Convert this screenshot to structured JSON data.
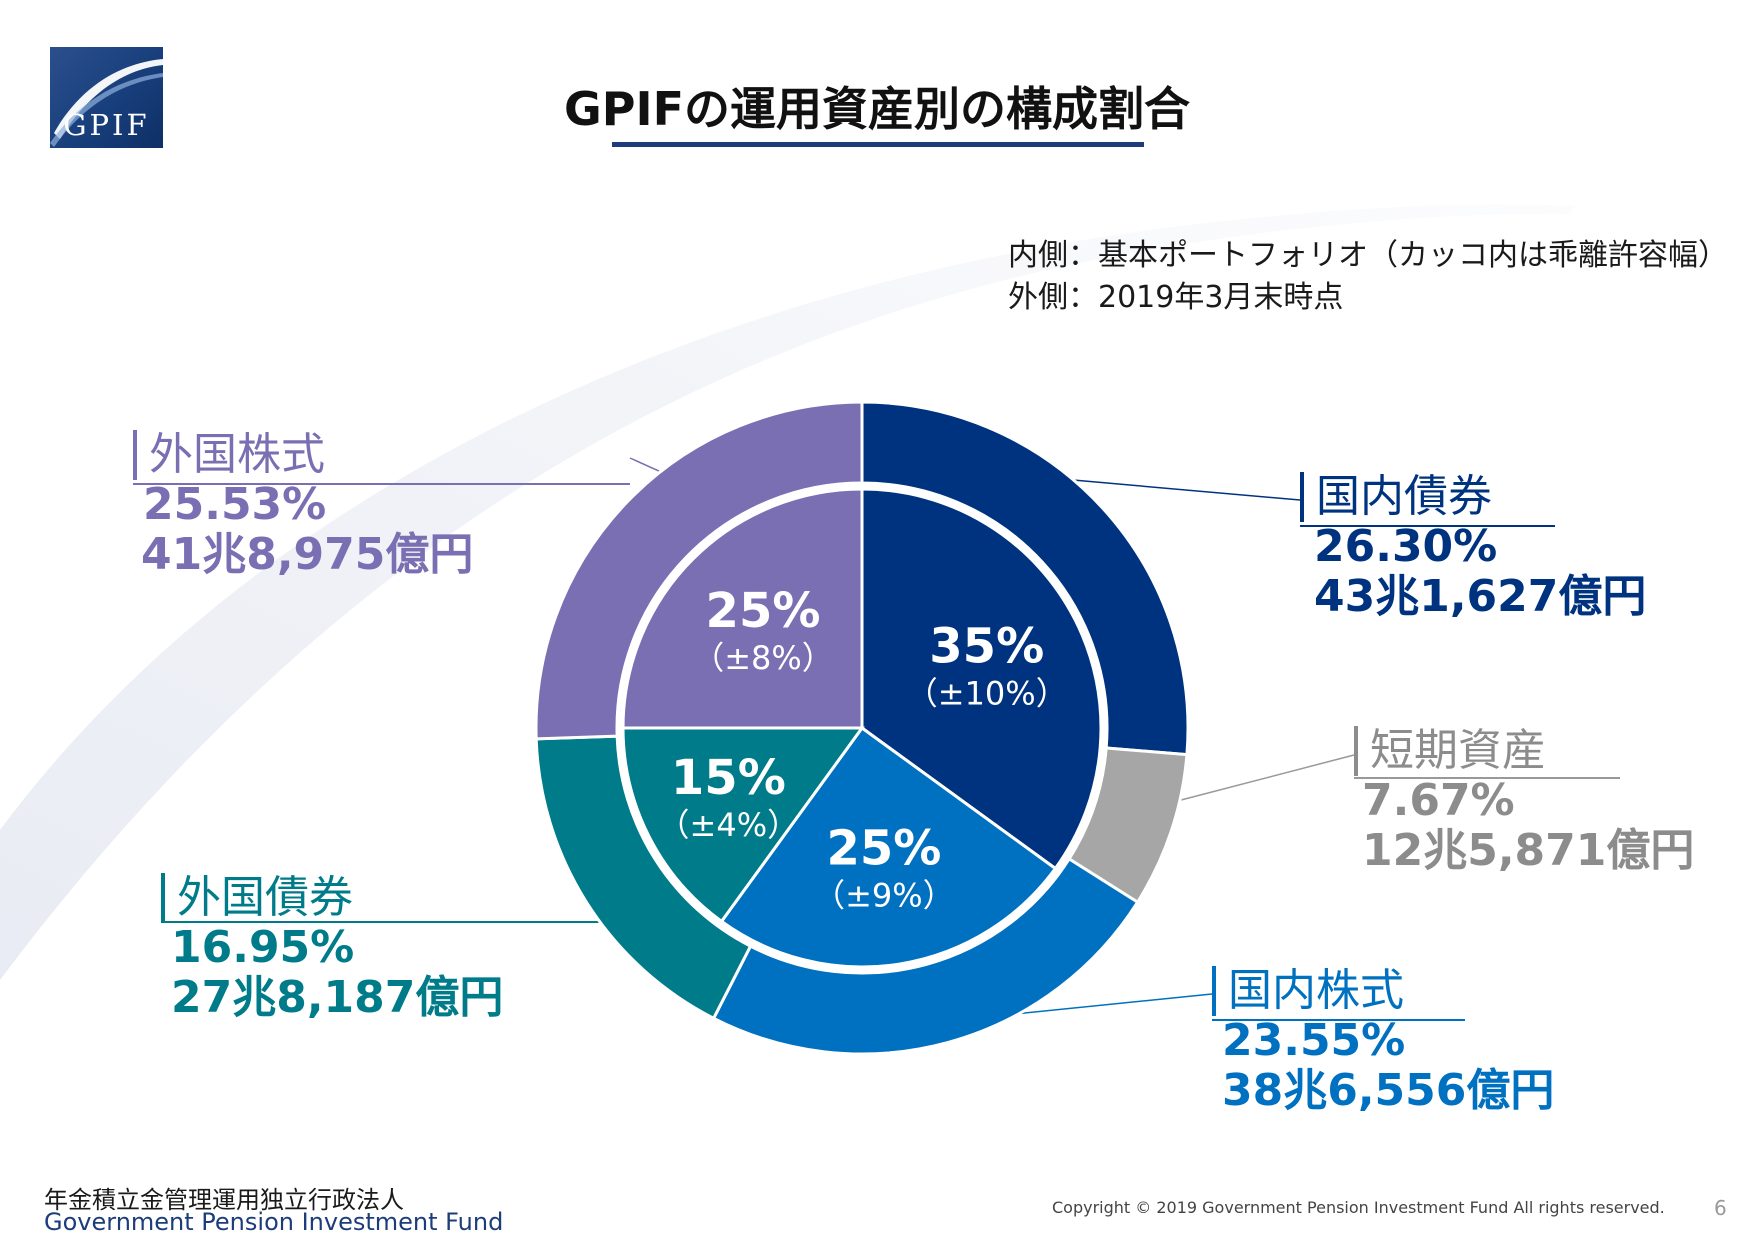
{
  "logo": {
    "text": "GPIF"
  },
  "title": "GPIFの運用資産別の構成割合",
  "notes": {
    "inner": "内側：基本ポートフォリオ（カッコ内は乖離許容幅）",
    "outer": "外側：2019年3月末時点"
  },
  "colors": {
    "domestic_bonds": "#00337f",
    "short_term": "#a6a6a6",
    "domestic_stocks": "#0070c0",
    "foreign_bonds": "#007b8a",
    "foreign_stocks": "#7a6fb3"
  },
  "labels": {
    "domestic_bonds": {
      "name": "国内債券",
      "pct": "26.30%",
      "amount": "43兆1,627億円"
    },
    "short_term": {
      "name": "短期資産",
      "pct": "7.67%",
      "amount": "12兆5,871億円"
    },
    "domestic_stocks": {
      "name": "国内株式",
      "pct": "23.55%",
      "amount": "38兆6,556億円"
    },
    "foreign_bonds": {
      "name": "外国債券",
      "pct": "16.95%",
      "amount": "27兆8,187億円"
    },
    "foreign_stocks": {
      "name": "外国株式",
      "pct": "25.53%",
      "amount": "41兆8,975億円"
    }
  },
  "chart_data": [
    {
      "type": "pie",
      "ring": "outer",
      "categories": [
        "国内債券",
        "短期資産",
        "国内株式",
        "外国債券",
        "外国株式"
      ],
      "values": [
        26.3,
        7.67,
        23.55,
        16.95,
        25.53
      ],
      "amounts": [
        "43兆1,627億円",
        "12兆5,871億円",
        "38兆6,556億円",
        "27兆8,187億円",
        "41兆8,975億円"
      ]
    },
    {
      "type": "pie",
      "ring": "inner",
      "categories": [
        "国内債券",
        "国内株式",
        "外国債券",
        "外国株式"
      ],
      "values": [
        35,
        25,
        15,
        25
      ],
      "value_labels": [
        "35%",
        "25%",
        "15%",
        "25%"
      ],
      "band_labels": [
        "（±10%）",
        "（±9%）",
        "（±4%）",
        "（±8%）"
      ]
    }
  ],
  "footer": {
    "org_jp": "年金積立金管理運用独立行政法人",
    "org_en": "Government Pension Investment Fund",
    "copyright": "Copyright © 2019 Government Pension Investment Fund All rights reserved.",
    "page": "6"
  }
}
